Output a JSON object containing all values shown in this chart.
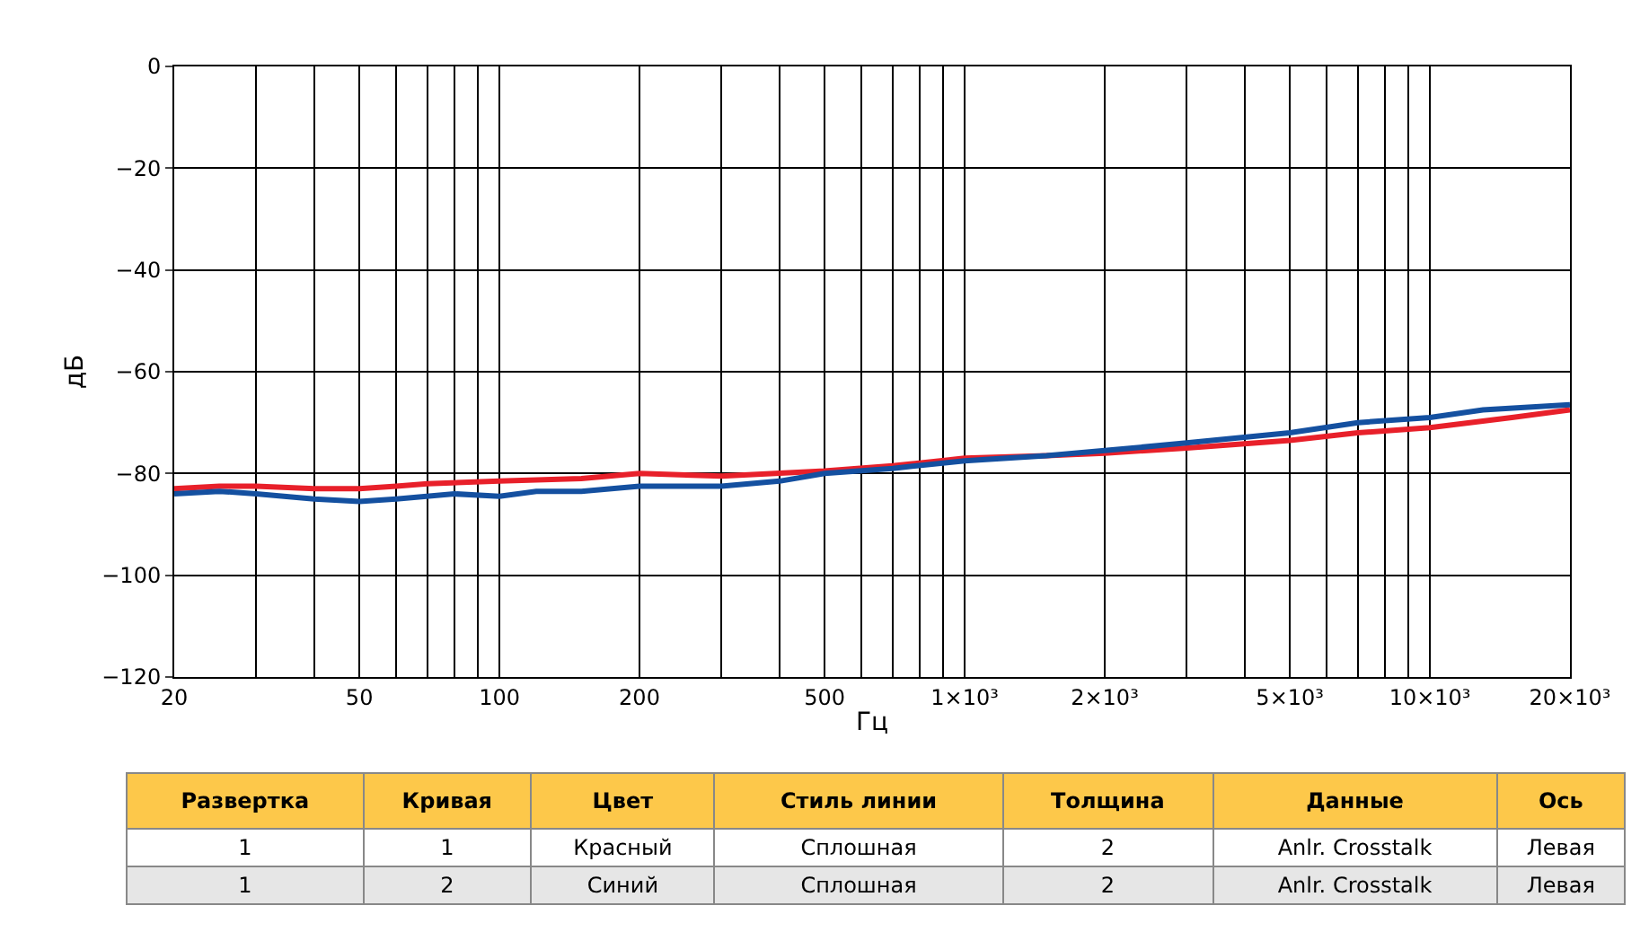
{
  "chart_data": {
    "type": "line",
    "xlabel": "Гц",
    "ylabel": "дБ",
    "log": "x",
    "grid": true,
    "line_style": "solid",
    "marker": "none",
    "xlim": [
      20,
      20000
    ],
    "ylim": [
      -120,
      0
    ],
    "xticks": [
      20,
      {
        "value": 30,
        "label": null
      },
      {
        "value": 40,
        "label": null
      },
      50,
      {
        "value": 60,
        "label": null
      },
      {
        "value": 70,
        "label": null
      },
      {
        "value": 80,
        "label": null
      },
      {
        "value": 90,
        "label": null
      },
      100,
      200,
      {
        "value": 300,
        "label": null
      },
      {
        "value": 400,
        "label": null
      },
      500,
      {
        "value": 600,
        "label": null
      },
      {
        "value": 700,
        "label": null
      },
      {
        "value": 800,
        "label": null
      },
      {
        "value": 900,
        "label": null
      },
      {
        "value": 1000,
        "label": "1×10³"
      },
      {
        "value": 2000,
        "label": "2×10³"
      },
      {
        "value": 3000,
        "label": null
      },
      {
        "value": 4000,
        "label": null
      },
      {
        "value": 5000,
        "label": "5×10³"
      },
      {
        "value": 6000,
        "label": null
      },
      {
        "value": 7000,
        "label": null
      },
      {
        "value": 8000,
        "label": null
      },
      {
        "value": 9000,
        "label": null
      },
      {
        "value": 10000,
        "label": "10×10³"
      },
      {
        "value": 20000,
        "label": "20×10³"
      }
    ],
    "yticks": [
      0,
      {
        "value": -20,
        "label": "−20"
      },
      {
        "value": -40,
        "label": "−40"
      },
      {
        "value": -60,
        "label": "−60"
      },
      {
        "value": -80,
        "label": "−80"
      },
      {
        "value": -100,
        "label": "−100"
      },
      {
        "value": -120,
        "label": "−120"
      }
    ],
    "series": [
      {
        "color": "#e8202a",
        "x": [
          20,
          25,
          30,
          40,
          50,
          60,
          70,
          100,
          150,
          200,
          300,
          500,
          700,
          1000,
          1500,
          2000,
          3000,
          5000,
          7000,
          10000,
          15000,
          20000
        ],
        "values": [
          -83,
          -82.5,
          -82.5,
          -83,
          -83,
          -82.5,
          -82,
          -81.5,
          -81,
          -80,
          -80.5,
          -79.5,
          -78.5,
          -77,
          -76.5,
          -76,
          -75,
          -73.5,
          -72,
          -71,
          -69,
          -67.5
        ]
      },
      {
        "color": "#1450a0",
        "x": [
          20,
          25,
          30,
          40,
          50,
          60,
          80,
          100,
          120,
          150,
          200,
          300,
          400,
          500,
          700,
          1000,
          1500,
          2000,
          3000,
          5000,
          7000,
          10000,
          13000,
          20000
        ],
        "values": [
          -84,
          -83.5,
          -84,
          -85,
          -85.5,
          -85,
          -84,
          -84.5,
          -83.5,
          -83.5,
          -82.5,
          -82.5,
          -81.5,
          -80,
          -79,
          -77.5,
          -76.5,
          -75.5,
          -74,
          -72,
          -70,
          -69,
          -67.5,
          -66.5
        ]
      }
    ],
    "annotations": [
      "Развертка",
      "Кривая",
      "Цвет",
      "Стиль линии",
      "Толщина",
      "Данные",
      "Ось",
      "1",
      "1",
      "Красный",
      "Сплошная",
      "2",
      "Anlr. Crosstalk",
      "Левая",
      "1",
      "2",
      "Синий",
      "Сплошная",
      "2",
      "Anlr. Crosstalk",
      "Левая"
    ]
  }
}
